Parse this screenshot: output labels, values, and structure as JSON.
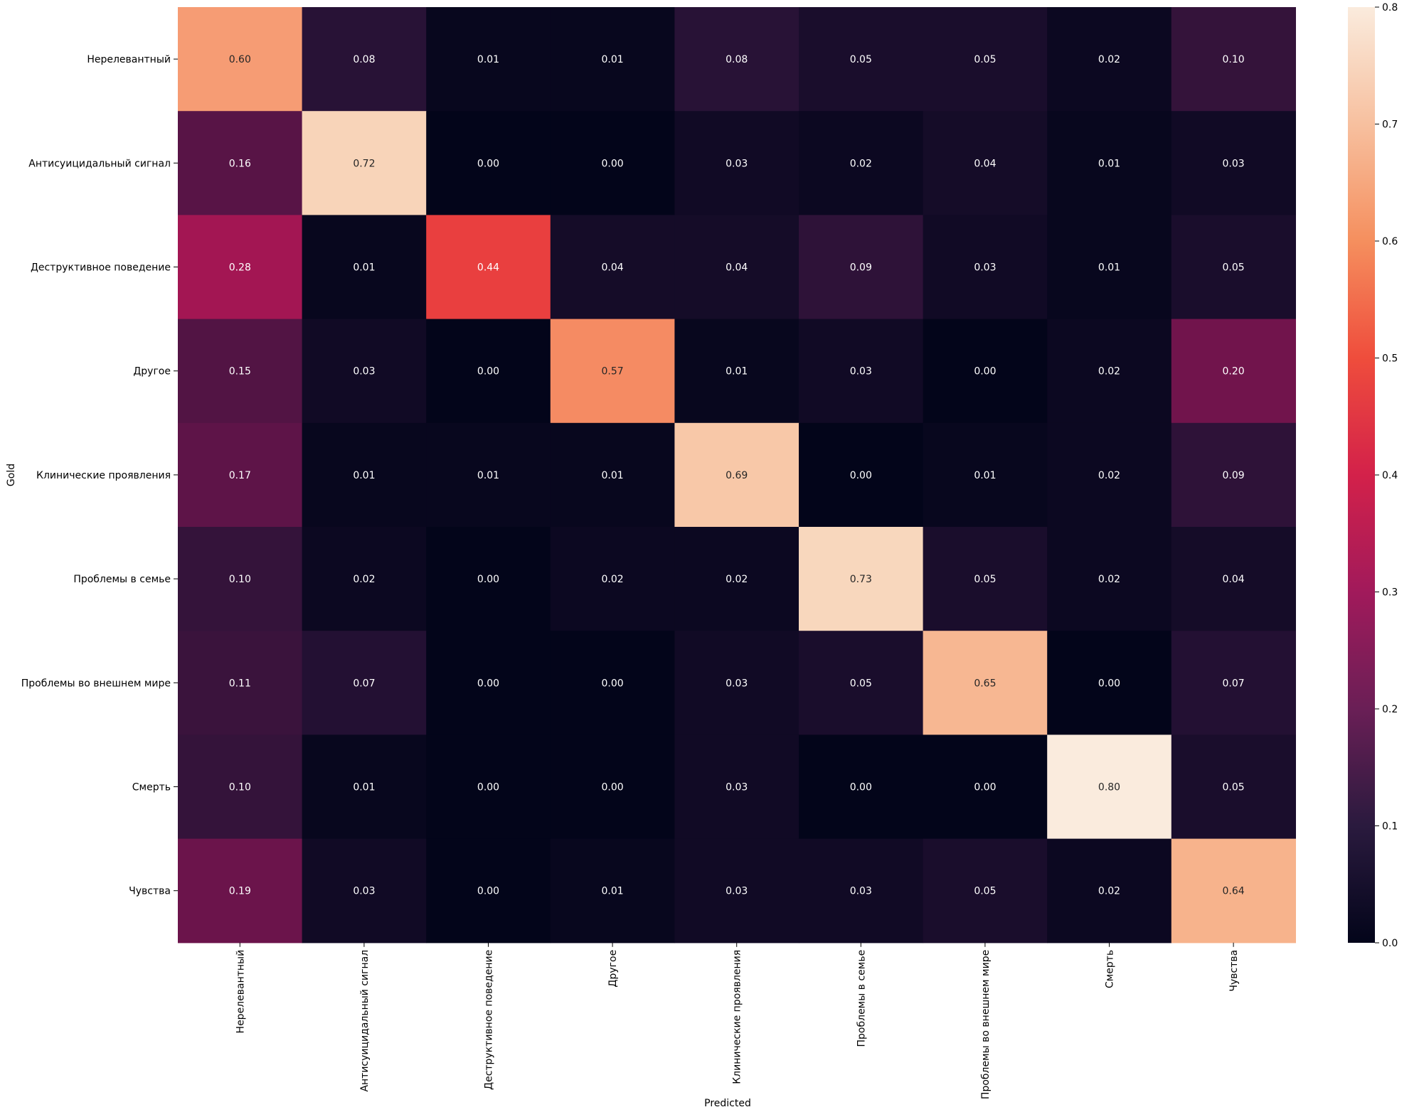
{
  "chart_data": {
    "type": "heatmap",
    "title": "",
    "xlabel": "Predicted",
    "ylabel": "Gold",
    "x_categories": [
      "Нерелевантный",
      "Антисуицидальный сигнал",
      "Деструктивное поведение",
      "Другое",
      "Клинические проявления",
      "Проблемы в семье",
      "Проблемы во внешнем мире",
      "Смерть",
      "Чувства"
    ],
    "y_categories": [
      "Нерелевантный",
      "Антисуицидальный сигнал",
      "Деструктивное поведение",
      "Другое",
      "Клинические проявления",
      "Проблемы в семье",
      "Проблемы во внешнем мире",
      "Смерть",
      "Чувства"
    ],
    "values": [
      [
        0.6,
        0.08,
        0.01,
        0.01,
        0.08,
        0.05,
        0.05,
        0.02,
        0.1
      ],
      [
        0.16,
        0.72,
        0.0,
        0.0,
        0.03,
        0.02,
        0.04,
        0.01,
        0.03
      ],
      [
        0.28,
        0.01,
        0.44,
        0.04,
        0.04,
        0.09,
        0.03,
        0.01,
        0.05
      ],
      [
        0.15,
        0.03,
        0.0,
        0.57,
        0.01,
        0.03,
        0.0,
        0.02,
        0.2
      ],
      [
        0.17,
        0.01,
        0.01,
        0.01,
        0.69,
        0.0,
        0.01,
        0.02,
        0.09
      ],
      [
        0.1,
        0.02,
        0.0,
        0.02,
        0.02,
        0.73,
        0.05,
        0.02,
        0.04
      ],
      [
        0.11,
        0.07,
        0.0,
        0.0,
        0.03,
        0.05,
        0.65,
        0.0,
        0.07
      ],
      [
        0.1,
        0.01,
        0.0,
        0.0,
        0.03,
        0.0,
        0.0,
        0.8,
        0.05
      ],
      [
        0.19,
        0.03,
        0.0,
        0.01,
        0.03,
        0.03,
        0.05,
        0.02,
        0.64
      ]
    ],
    "annotation_format": "0.00",
    "colormap": "rocket",
    "color_range": [
      0.0,
      0.8
    ],
    "colorbar_ticks": [
      0.0,
      0.1,
      0.2,
      0.3,
      0.4,
      0.5,
      0.6,
      0.7,
      0.8
    ],
    "colorbar_tick_labels": [
      "0.0",
      "0.1",
      "0.2",
      "0.3",
      "0.4",
      "0.5",
      "0.6",
      "0.7",
      "0.8"
    ],
    "legend_position": "right",
    "grid": false
  }
}
